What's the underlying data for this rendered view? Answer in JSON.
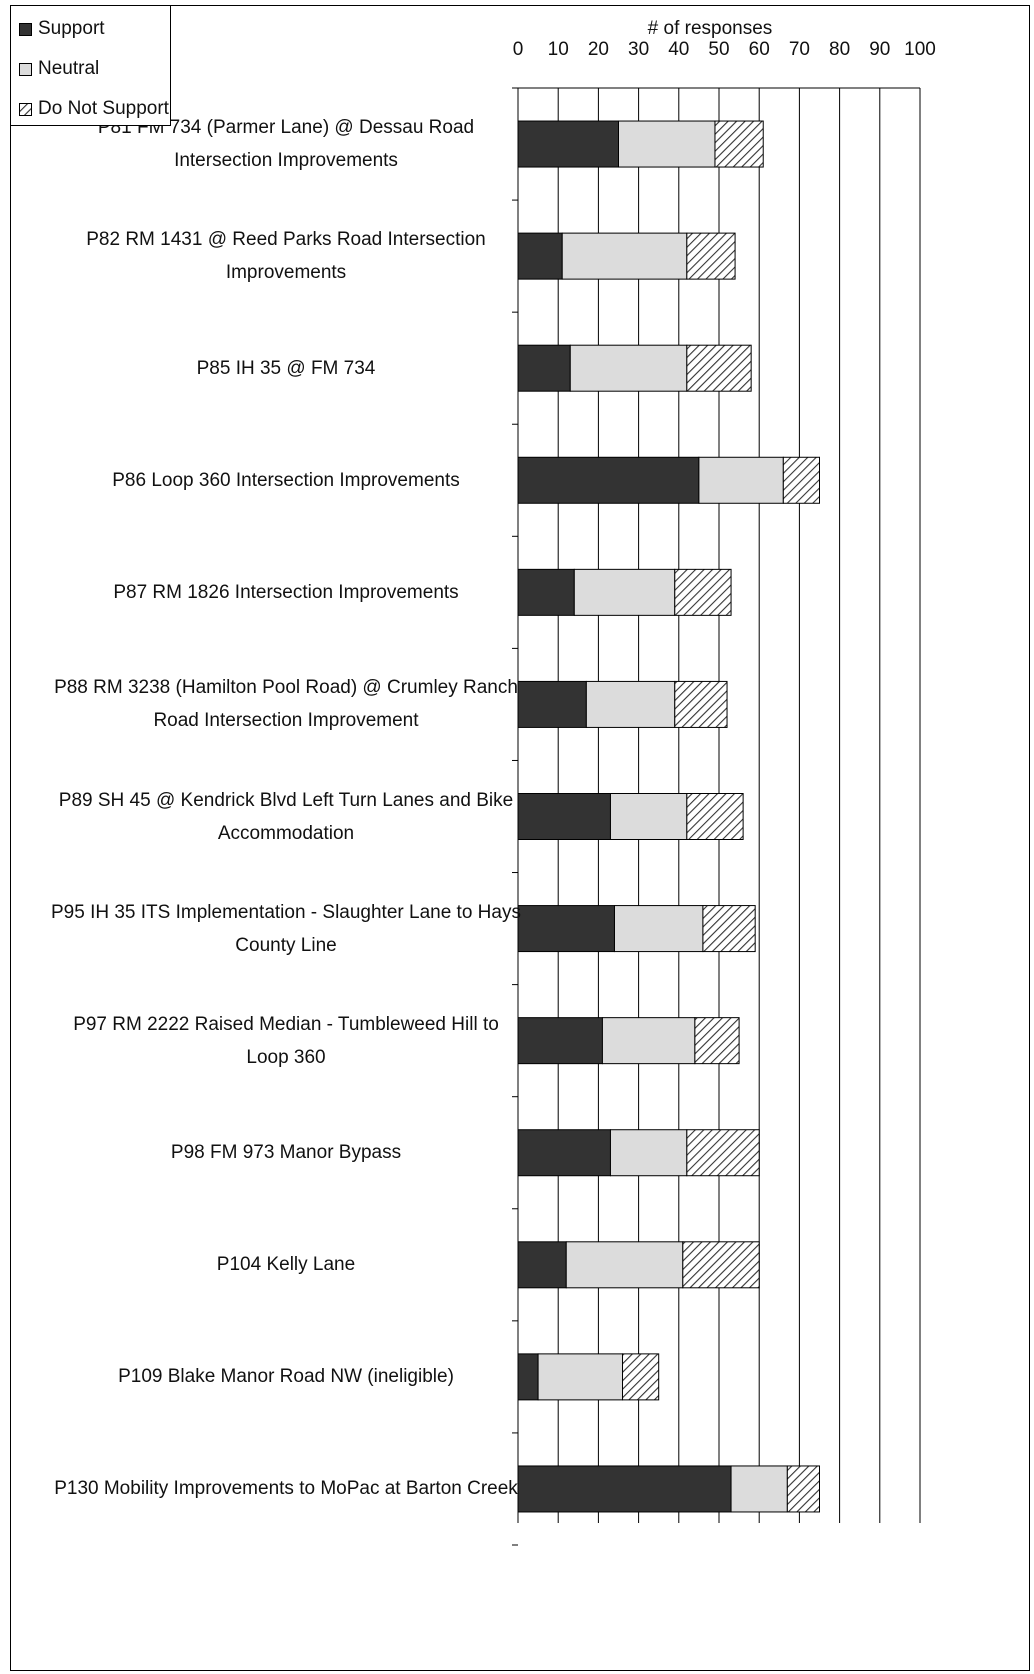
{
  "chart_data": {
    "type": "bar",
    "orientation": "horizontal",
    "stacked": true,
    "xlabel": "# of responses",
    "xlim": [
      0,
      100
    ],
    "xticks": [
      0,
      10,
      20,
      30,
      40,
      50,
      60,
      70,
      80,
      90,
      100
    ],
    "grid": true,
    "legend_position": "top-left",
    "categories": [
      "P81 FM 734 (Parmer Lane) @ Dessau Road Intersection Improvements",
      "P82 RM 1431 @ Reed Parks Road Intersection Improvements",
      "P85 IH 35 @ FM 734",
      "P86 Loop 360 Intersection Improvements",
      "P87 RM 1826 Intersection Improvements",
      "P88 RM 3238 (Hamilton Pool Road) @ Crumley Ranch Road Intersection Improvement",
      "P89 SH 45 @ Kendrick Blvd Left Turn Lanes and Bike Accommodation",
      "P95 IH 35 ITS Implementation - Slaughter Lane to Hays County Line",
      "P97 RM 2222 Raised Median - Tumbleweed Hill to Loop 360",
      "P98 FM 973 Manor Bypass",
      "P104 Kelly Lane",
      "P109 Blake Manor Road NW (ineligible)",
      "P130 Mobility Improvements to MoPac at Barton Creek"
    ],
    "series": [
      {
        "name": "Support",
        "color": "#333333",
        "pattern": "solid",
        "values": [
          25,
          11,
          13,
          45,
          14,
          17,
          23,
          24,
          21,
          23,
          12,
          5,
          53
        ]
      },
      {
        "name": "Neutral",
        "color": "#dcdcdc",
        "pattern": "solid",
        "values": [
          24,
          31,
          29,
          21,
          25,
          22,
          19,
          22,
          23,
          19,
          29,
          21,
          14
        ]
      },
      {
        "name": "Do Not Support",
        "color": "#ffffff",
        "pattern": "hatch",
        "values": [
          12,
          12,
          16,
          9,
          14,
          13,
          14,
          13,
          11,
          18,
          19,
          9,
          8
        ]
      }
    ]
  }
}
